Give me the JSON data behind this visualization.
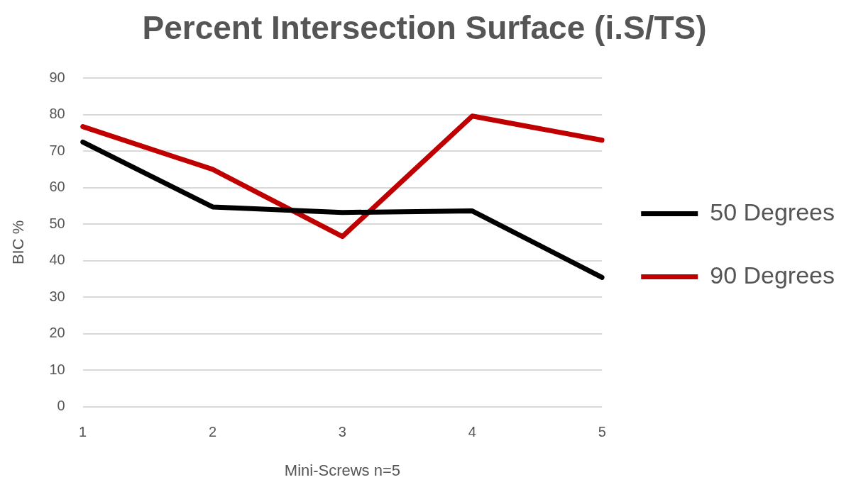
{
  "chart_data": {
    "type": "line",
    "title": "Percent Intersection Surface (i.S/TS)",
    "xlabel": "Mini-Screws n=5",
    "ylabel": "BIC %",
    "categories": [
      "1",
      "2",
      "3",
      "4",
      "5"
    ],
    "series": [
      {
        "name": "50 Degrees",
        "color": "#000000",
        "values": [
          72.5,
          54.7,
          53.2,
          53.6,
          35.4
        ]
      },
      {
        "name": "90 Degrees",
        "color": "#c00000",
        "values": [
          76.7,
          65,
          46.6,
          79.6,
          73
        ]
      }
    ],
    "ylim": [
      0,
      90
    ],
    "yticks": [
      0,
      10,
      20,
      30,
      40,
      50,
      60,
      70,
      80,
      90
    ],
    "grid": "y",
    "legend": "right",
    "marker": "none",
    "line_style": "solid"
  }
}
